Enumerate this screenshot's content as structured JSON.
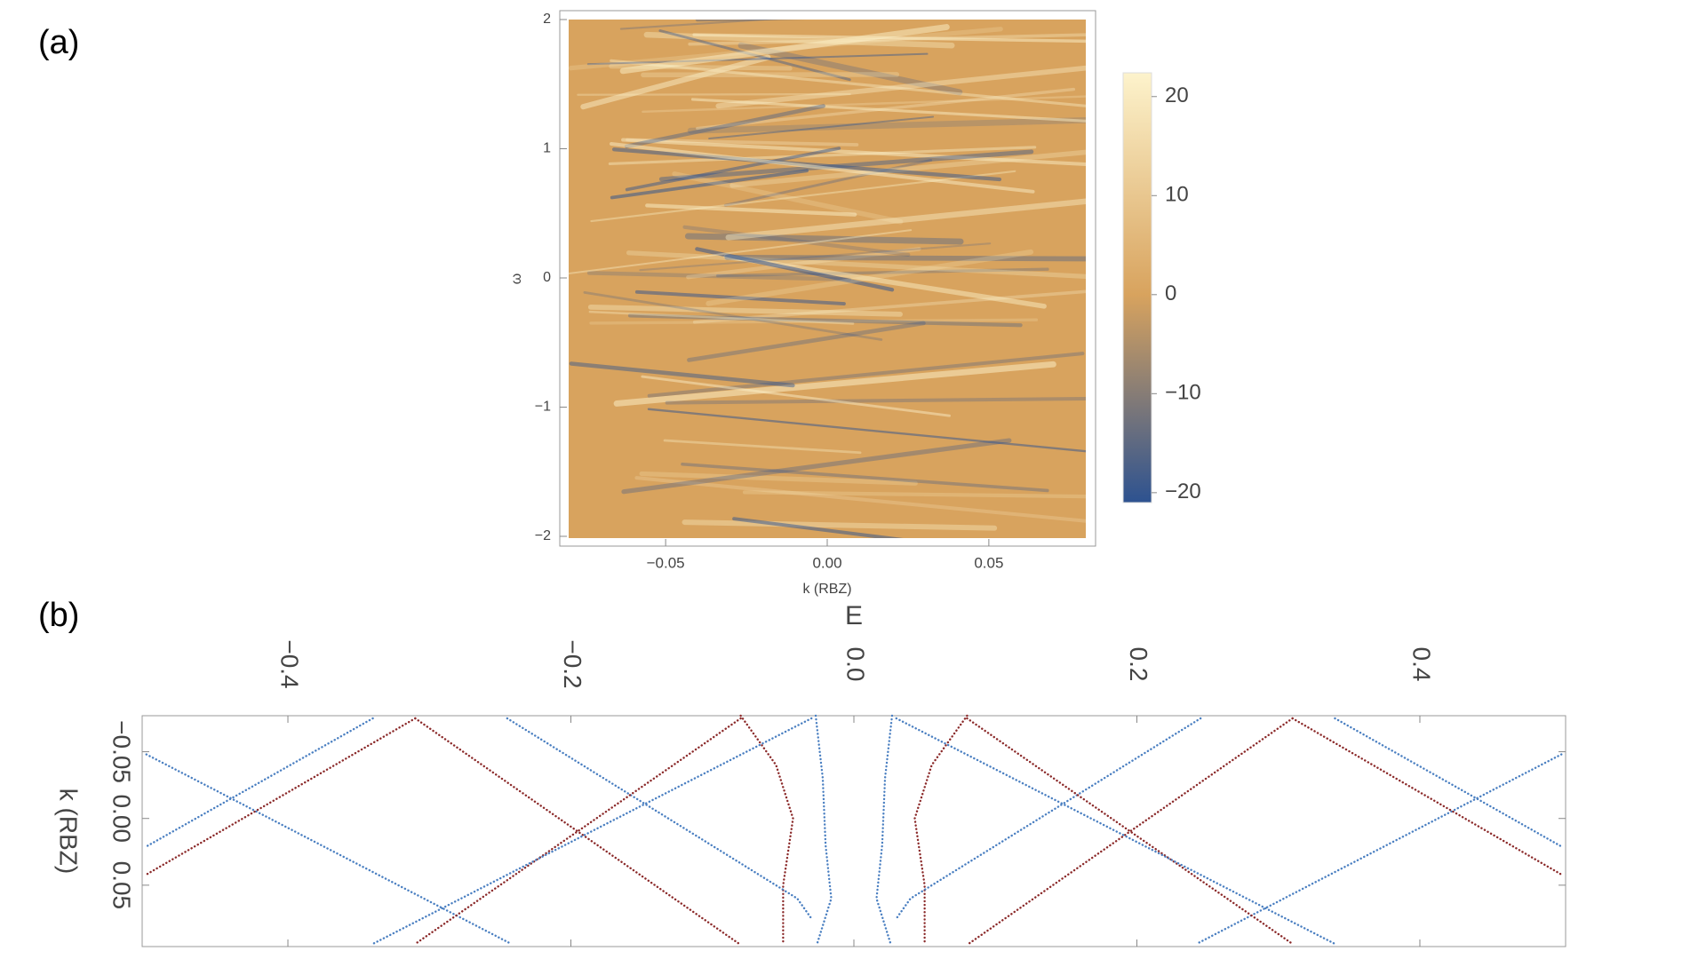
{
  "chart_data": [
    {
      "type": "heatmap",
      "panel": "(a)",
      "xlabel": "k (RBZ)",
      "ylabel": "ω",
      "xlim": [
        -0.08,
        0.08
      ],
      "ylim": [
        -2,
        2
      ],
      "xticks": [
        {
          "value": -0.05,
          "label": "−0.05"
        },
        {
          "value": 0,
          "label": "0.00"
        },
        0.05
      ],
      "yticks": [
        {
          "value": -2,
          "label": "−2"
        },
        {
          "value": -1,
          "label": "−1"
        },
        0,
        1,
        2
      ],
      "zlim": [
        -21,
        22.4
      ],
      "zticks": [
        {
          "value": -20,
          "label": "−20"
        },
        {
          "value": -10,
          "label": "−10"
        },
        0,
        10,
        20
      ],
      "colors": [
        "#2d5290",
        "#d8a35e",
        "#fdf3cc"
      ]
    },
    {
      "type": "line",
      "panel": "(b)",
      "xlabel": "E",
      "ylabel": "k (RBZ)",
      "xlim": [
        -0.503,
        0.503
      ],
      "ylim": [
        -0.077,
        0.096
      ],
      "y_inverted": true,
      "x_axis_top": true,
      "xticks": [
        {
          "value": -0.4,
          "label": "−0.4"
        },
        {
          "value": -0.2,
          "label": "−0.2"
        },
        {
          "value": 0,
          "label": "0.0"
        },
        0.2,
        0.4
      ],
      "yticks": [
        {
          "value": -0.05,
          "label": "−0.05"
        },
        {
          "value": 0,
          "label": "0.00"
        },
        0.05
      ],
      "series": [
        {
          "color": "#8b2a2a",
          "x": [
            -0.08,
            -0.055,
            -0.043,
            -0.05,
            -0.05
          ],
          "values": [
            -0.077,
            -0.04,
            0,
            0.05,
            0.094
          ]
        },
        {
          "color": "#4a7fc1",
          "x": [
            -0.027,
            -0.022,
            -0.02,
            -0.016,
            -0.026
          ],
          "values": [
            -0.077,
            -0.03,
            0.02,
            0.06,
            0.094
          ]
        },
        {
          "color": "#4a7fc1",
          "x": [
            -0.5,
            -0.244
          ],
          "values": [
            -0.048,
            0.093
          ]
        },
        {
          "color": "#8b2a2a",
          "x": [
            -0.31,
            -0.5
          ],
          "values": [
            -0.075,
            0.042
          ]
        },
        {
          "color": "#8b2a2a",
          "x": [
            -0.31,
            -0.081
          ],
          "values": [
            -0.075,
            0.094
          ]
        },
        {
          "color": "#4a7fc1",
          "x": [
            -0.34,
            -0.5
          ],
          "values": [
            -0.075,
            0.021
          ]
        },
        {
          "color": "#4a7fc1",
          "x": [
            -0.245,
            -0.04,
            -0.03
          ],
          "values": [
            -0.075,
            0.06,
            0.075
          ]
        },
        {
          "color": "#8b2a2a",
          "x": [
            -0.08,
            -0.31
          ],
          "values": [
            -0.075,
            0.094
          ]
        },
        {
          "color": "#4a7fc1",
          "x": [
            -0.03,
            -0.34
          ],
          "values": [
            -0.075,
            0.094
          ]
        },
        {
          "color": "#8b2a2a",
          "x": [
            0.08,
            0.055,
            0.043,
            0.05,
            0.05
          ],
          "values": [
            -0.077,
            -0.04,
            0,
            0.05,
            0.094
          ]
        },
        {
          "color": "#4a7fc1",
          "x": [
            0.027,
            0.022,
            0.02,
            0.016,
            0.026
          ],
          "values": [
            -0.077,
            -0.03,
            0.02,
            0.06,
            0.094
          ]
        },
        {
          "color": "#4a7fc1",
          "x": [
            0.5,
            0.244
          ],
          "values": [
            -0.048,
            0.093
          ]
        },
        {
          "color": "#8b2a2a",
          "x": [
            0.31,
            0.5
          ],
          "values": [
            -0.075,
            0.042
          ]
        },
        {
          "color": "#8b2a2a",
          "x": [
            0.31,
            0.081
          ],
          "values": [
            -0.075,
            0.094
          ]
        },
        {
          "color": "#4a7fc1",
          "x": [
            0.34,
            0.5
          ],
          "values": [
            -0.075,
            0.021
          ]
        },
        {
          "color": "#4a7fc1",
          "x": [
            0.245,
            0.04,
            0.03
          ],
          "values": [
            -0.075,
            0.06,
            0.075
          ]
        },
        {
          "color": "#8b2a2a",
          "x": [
            0.08,
            0.31
          ],
          "values": [
            -0.075,
            0.094
          ]
        },
        {
          "color": "#4a7fc1",
          "x": [
            0.03,
            0.34
          ],
          "values": [
            -0.075,
            0.094
          ]
        }
      ]
    }
  ]
}
